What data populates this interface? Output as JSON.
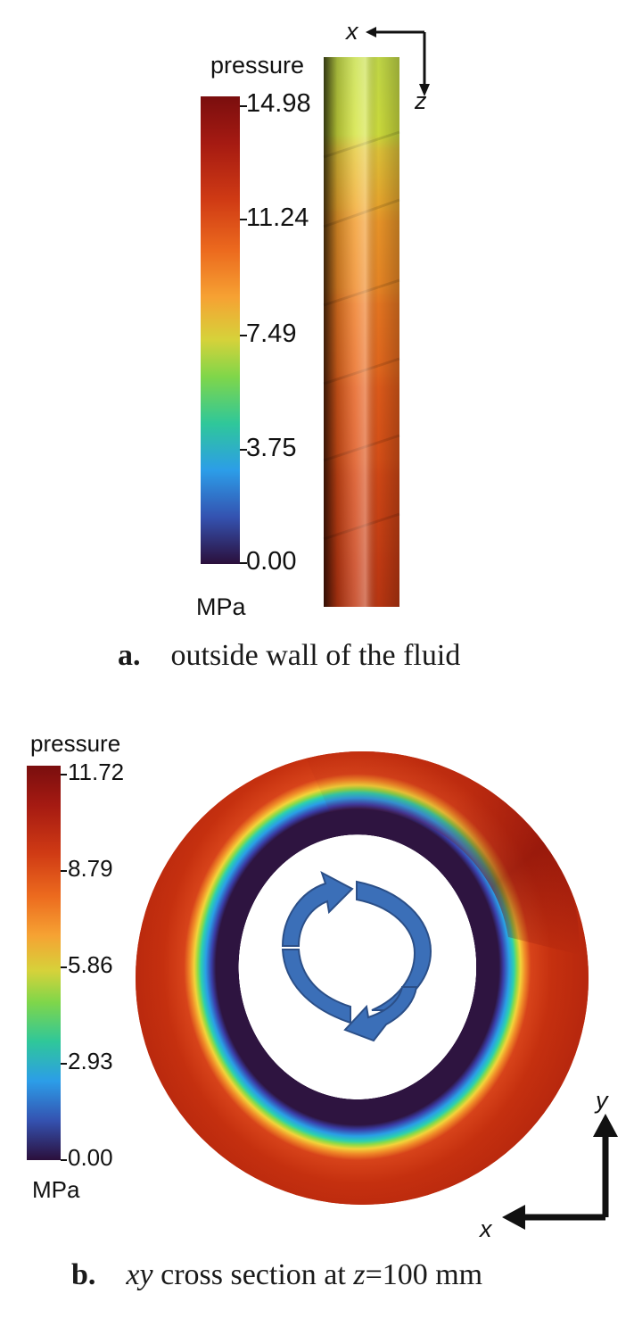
{
  "panel_a": {
    "legend_title": "pressure",
    "unit": "MPa",
    "ticks": [
      "14.98",
      "11.24",
      "7.49",
      "3.75",
      "0.00"
    ],
    "axis_x": "x",
    "axis_z": "z",
    "caption_letter": "a.",
    "caption_text": "outside wall of the fluid"
  },
  "panel_b": {
    "legend_title": "pressure",
    "unit": "MPa",
    "ticks": [
      "11.72",
      "8.79",
      "5.86",
      "2.93",
      "0.00"
    ],
    "axis_x": "x",
    "axis_y": "y",
    "caption_letter": "b.",
    "caption_var": "xy",
    "caption_mid": " cross section at ",
    "caption_zvar": "z",
    "caption_end": "=100 mm"
  },
  "colors": {
    "colormap": [
      "#2f0f3f",
      "#3b4ea0",
      "#2f9fe8",
      "#23c3c0",
      "#3ed36a",
      "#a8db3a",
      "#e8cf3a",
      "#f59a2a",
      "#e8541c",
      "#a61612",
      "#8a1010"
    ],
    "arrow_blue": "#3b6fb8",
    "outer_ring": "#c8330d",
    "inner_ring": "#2d1540"
  }
}
